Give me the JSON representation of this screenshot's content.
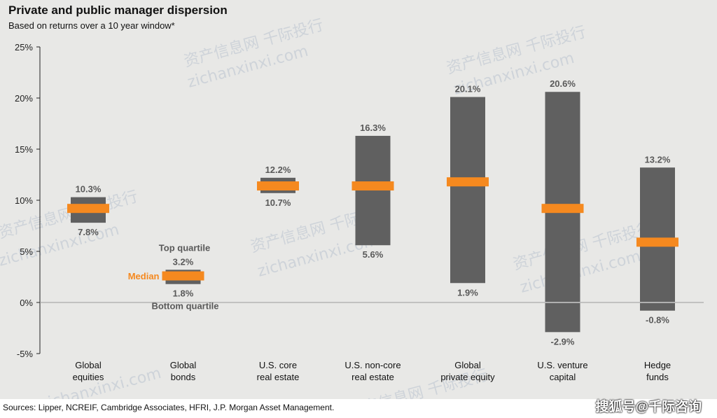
{
  "header": {
    "title": "Private and public manager dispersion",
    "subtitle": "Based on returns over a 10 year window*"
  },
  "footer": {
    "source": "Sources: Lipper, NCREIF, Cambridge Associates, HFRI, J.P. Morgan Asset Management.",
    "brand": "搜狐号@千际咨询"
  },
  "watermarks": [
    "资产信息网 千际投行",
    "zichanxinxi.com"
  ],
  "chart_data": {
    "type": "bar",
    "subtype": "floating-range-with-median",
    "ylim": [
      -5,
      25
    ],
    "ytick_values": [
      -5,
      0,
      5,
      10,
      15,
      20,
      25
    ],
    "ytick_labels": [
      "-5%",
      "0%",
      "5%",
      "10%",
      "15%",
      "20%",
      "25%"
    ],
    "categories": [
      [
        "Global",
        "equities"
      ],
      [
        "Global",
        "bonds"
      ],
      [
        "U.S. core",
        "real estate"
      ],
      [
        "U.S. non-core",
        "real estate"
      ],
      [
        "Global",
        "private equity"
      ],
      [
        "U.S. venture",
        "capital"
      ],
      [
        "Hedge",
        "funds"
      ]
    ],
    "series": [
      {
        "name": "Top quartile",
        "values": [
          10.3,
          3.2,
          12.2,
          16.3,
          20.1,
          20.6,
          13.2
        ]
      },
      {
        "name": "Bottom quartile",
        "values": [
          7.8,
          1.8,
          10.7,
          5.6,
          1.9,
          -2.9,
          -0.8
        ]
      },
      {
        "name": "Median",
        "values": [
          9.2,
          2.6,
          11.4,
          11.4,
          11.8,
          9.2,
          5.9
        ]
      }
    ],
    "data_labels": {
      "top": [
        "10.3%",
        "3.2%",
        "12.2%",
        "16.3%",
        "20.1%",
        "20.6%",
        "13.2%"
      ],
      "bottom": [
        "7.8%",
        "1.8%",
        "10.7%",
        "5.6%",
        "1.9%",
        "-2.9%",
        "-0.8%"
      ]
    },
    "legend": {
      "top": "Top quartile",
      "median": "Median",
      "bottom": "Bottom quartile"
    },
    "colors": {
      "range": "#606060",
      "median": "#f5891f",
      "label": "#595959",
      "axis": "#222222"
    }
  }
}
